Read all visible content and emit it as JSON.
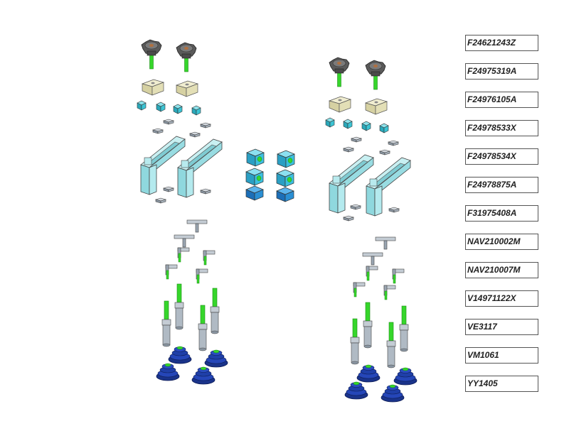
{
  "parts_list": [
    "F24621243Z",
    "F24975319A",
    "F24976105A",
    "F24978533X",
    "F24978534X",
    "F24978875A",
    "F31975408A",
    "NAV210002M",
    "NAV210007M",
    "V14971122X",
    "VE3117",
    "VM1061",
    "YY1405"
  ],
  "colors": {
    "knob": "#5a5a5a",
    "stud_green": "#36d62b",
    "clamp_block": "#e3dfb6",
    "clip_cyan": "#3cc4d4",
    "arm_light": "#a8e6ea",
    "center_block": "#3cc0e0",
    "center_block_dark": "#2a8fd4",
    "metal": "#9aa6b2",
    "metal_light": "#c4ccd4",
    "cup_blue": "#1f3fa8",
    "outline": "#333333"
  }
}
